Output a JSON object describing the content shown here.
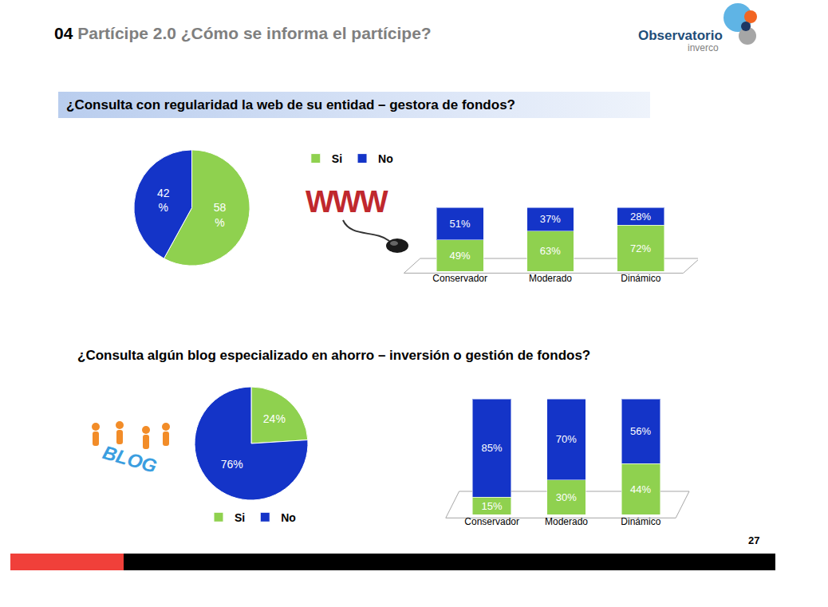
{
  "header": {
    "number": "04",
    "title": "Partícipe 2.0 ¿Cómo se informa el partícipe?"
  },
  "logo": {
    "name": "Observatorio",
    "subname": "inverco"
  },
  "questions": [
    "¿Consulta con regularidad la web de su entidad – gestora de fondos?",
    "¿Consulta algún blog especializado en ahorro – inversión o gestión de fondos?"
  ],
  "icons": [
    "WWW",
    "BLOG"
  ],
  "page_number": "27",
  "chart_data": [
    {
      "type": "pie",
      "categories": [
        "Si",
        "No"
      ],
      "values": [
        58,
        42
      ],
      "value_labels": [
        "58\n%",
        "42\n%"
      ],
      "colors": [
        "#8fd14f",
        "#1434c8"
      ],
      "data_labels": true,
      "legend": "top right"
    },
    {
      "type": "bar",
      "categories": [
        "Conservador",
        "Moderado",
        "Dinámico"
      ],
      "stacked": true,
      "data_labels": true,
      "tick_labels": "x",
      "ylim": [
        0,
        100
      ],
      "series": [
        {
          "name": "Si",
          "color": "#8fd14f",
          "values": [
            49,
            63,
            72
          ],
          "value_labels": [
            "49%",
            "63%",
            "72%"
          ]
        },
        {
          "name": "No",
          "color": "#1434c8",
          "values": [
            51,
            37,
            28
          ],
          "value_labels": [
            "51%",
            "37%",
            "28%"
          ]
        }
      ]
    },
    {
      "type": "pie",
      "categories": [
        "Si",
        "No"
      ],
      "values": [
        24,
        76
      ],
      "value_labels": [
        "24%",
        "76%"
      ],
      "colors": [
        "#8fd14f",
        "#1434c8"
      ],
      "data_labels": true,
      "legend": "bottom"
    },
    {
      "type": "bar",
      "categories": [
        "Conservador",
        "Moderado",
        "Dinámico"
      ],
      "stacked": true,
      "data_labels": true,
      "tick_labels": "x",
      "ylim": [
        0,
        100
      ],
      "series": [
        {
          "name": "Si",
          "color": "#8fd14f",
          "values": [
            15,
            30,
            44
          ],
          "value_labels": [
            "15%",
            "30%",
            "44%"
          ]
        },
        {
          "name": "No",
          "color": "#1434c8",
          "values": [
            85,
            70,
            56
          ],
          "value_labels": [
            "85%",
            "70%",
            "56%"
          ]
        }
      ]
    }
  ]
}
